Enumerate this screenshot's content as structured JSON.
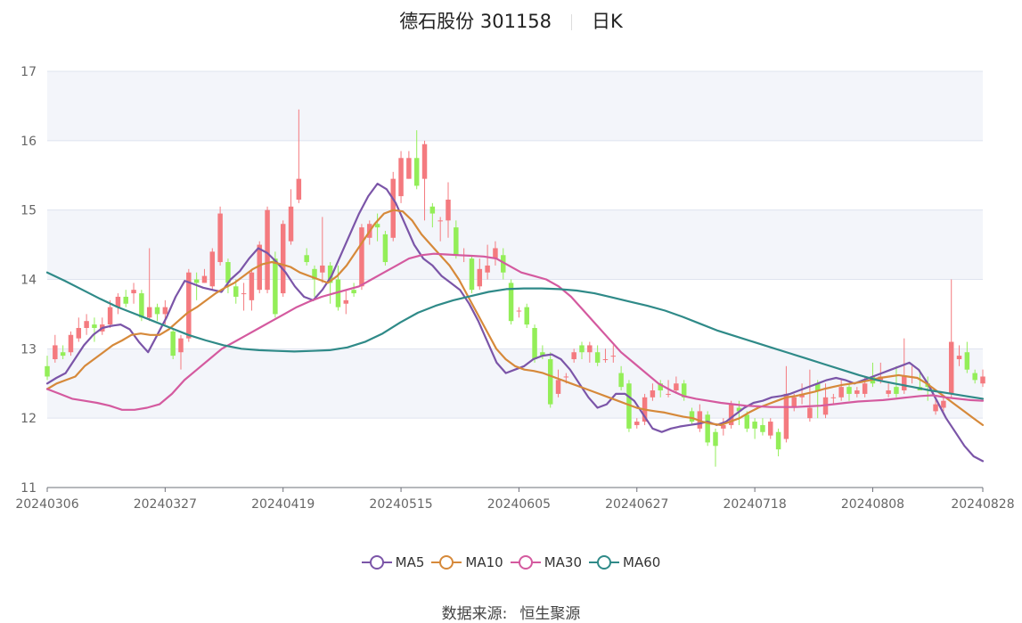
{
  "title": "德石股份 301158",
  "subtitle": "日K",
  "source_label": "数据来源:",
  "source_value": "恒生聚源",
  "colors": {
    "up": "#f47a7f",
    "down": "#93ee58",
    "band": "#f3f5fa",
    "grid": "#dfe4ef",
    "axis": "#666666"
  },
  "chart_data": {
    "type": "candlestick",
    "ylim": [
      11,
      17
    ],
    "yticks": [
      11,
      12,
      13,
      14,
      15,
      16,
      17
    ],
    "grid": true,
    "legend_position": "bottom",
    "x_tick_labels": [
      {
        "i": 0,
        "label": "20240306"
      },
      {
        "i": 15,
        "label": "20240327"
      },
      {
        "i": 30,
        "label": "20240419"
      },
      {
        "i": 45,
        "label": "20240515"
      },
      {
        "i": 60,
        "label": "20240605"
      },
      {
        "i": 75,
        "label": "20240627"
      },
      {
        "i": 90,
        "label": "20240718"
      },
      {
        "i": 105,
        "label": "20240808"
      },
      {
        "i": 119,
        "label": "20240828"
      }
    ],
    "candles": [
      [
        12.75,
        12.6,
        12.9,
        12.55
      ],
      [
        12.85,
        13.05,
        13.2,
        12.8
      ],
      [
        12.95,
        12.9,
        13.05,
        12.85
      ],
      [
        12.95,
        13.2,
        13.25,
        12.9
      ],
      [
        13.15,
        13.3,
        13.45,
        13.1
      ],
      [
        13.3,
        13.4,
        13.5,
        13.2
      ],
      [
        13.35,
        13.3,
        13.45,
        13.1
      ],
      [
        13.25,
        13.35,
        13.45,
        13.2
      ],
      [
        13.35,
        13.6,
        13.7,
        13.3
      ],
      [
        13.6,
        13.75,
        13.8,
        13.5
      ],
      [
        13.75,
        13.65,
        13.85,
        13.6
      ],
      [
        13.8,
        13.85,
        13.95,
        13.65
      ],
      [
        13.8,
        13.45,
        13.85,
        13.4
      ],
      [
        13.45,
        13.6,
        14.45,
        13.4
      ],
      [
        13.6,
        13.5,
        13.65,
        13.4
      ],
      [
        13.5,
        13.6,
        13.7,
        13.35
      ],
      [
        13.25,
        12.9,
        13.3,
        12.85
      ],
      [
        12.95,
        13.15,
        13.2,
        12.7
      ],
      [
        13.15,
        14.1,
        14.15,
        13.1
      ],
      [
        14.0,
        13.95,
        14.1,
        13.7
      ],
      [
        13.95,
        14.05,
        14.15,
        13.95
      ],
      [
        13.9,
        14.4,
        14.45,
        13.85
      ],
      [
        14.25,
        14.95,
        15.05,
        14.2
      ],
      [
        14.25,
        13.95,
        14.3,
        13.8
      ],
      [
        13.9,
        13.75,
        14.0,
        13.65
      ],
      [
        13.8,
        13.8,
        13.95,
        13.55
      ],
      [
        13.7,
        14.1,
        14.15,
        13.55
      ],
      [
        13.85,
        14.5,
        14.55,
        13.8
      ],
      [
        13.85,
        15.0,
        15.05,
        13.8
      ],
      [
        14.3,
        13.5,
        14.4,
        13.45
      ],
      [
        13.8,
        14.8,
        14.85,
        13.75
      ],
      [
        14.55,
        15.05,
        15.3,
        14.5
      ],
      [
        15.15,
        15.45,
        16.45,
        15.1
      ],
      [
        14.35,
        14.25,
        14.45,
        14.2
      ],
      [
        14.15,
        14.0,
        14.2,
        13.75
      ],
      [
        14.1,
        14.2,
        14.9,
        13.95
      ],
      [
        14.2,
        13.95,
        14.25,
        13.65
      ],
      [
        14.0,
        13.6,
        14.2,
        13.55
      ],
      [
        13.65,
        13.7,
        13.85,
        13.5
      ],
      [
        13.85,
        13.8,
        13.95,
        13.75
      ],
      [
        13.9,
        14.75,
        14.8,
        13.85
      ],
      [
        14.6,
        14.8,
        14.85,
        14.5
      ],
      [
        14.8,
        14.75,
        14.95,
        14.55
      ],
      [
        14.65,
        14.25,
        14.7,
        14.2
      ],
      [
        14.6,
        15.45,
        15.55,
        14.55
      ],
      [
        15.2,
        15.75,
        15.85,
        15.1
      ],
      [
        15.45,
        15.75,
        15.85,
        15.45
      ],
      [
        15.75,
        15.35,
        16.15,
        15.3
      ],
      [
        15.45,
        15.95,
        16.0,
        14.85
      ],
      [
        15.05,
        14.95,
        15.1,
        14.75
      ],
      [
        14.85,
        14.85,
        14.9,
        14.55
      ],
      [
        14.85,
        15.15,
        15.4,
        14.6
      ],
      [
        14.75,
        14.35,
        14.85,
        14.3
      ],
      [
        14.35,
        14.35,
        14.45,
        14.25
      ],
      [
        14.3,
        13.85,
        14.35,
        13.8
      ],
      [
        13.9,
        14.15,
        14.3,
        13.85
      ],
      [
        14.1,
        14.2,
        14.5,
        14.0
      ],
      [
        14.3,
        14.45,
        14.55,
        14.2
      ],
      [
        14.35,
        14.1,
        14.45,
        14.0
      ],
      [
        13.95,
        13.4,
        14.0,
        13.35
      ],
      [
        13.55,
        13.55,
        13.6,
        13.45
      ],
      [
        13.6,
        13.35,
        13.65,
        13.3
      ],
      [
        13.3,
        12.85,
        13.35,
        12.8
      ],
      [
        12.95,
        12.9,
        13.05,
        12.85
      ],
      [
        12.85,
        12.2,
        12.95,
        12.15
      ],
      [
        12.35,
        12.55,
        12.7,
        12.3
      ],
      [
        12.6,
        12.6,
        12.65,
        12.5
      ],
      [
        12.85,
        12.95,
        13.0,
        12.8
      ],
      [
        13.05,
        12.95,
        13.1,
        12.85
      ],
      [
        12.95,
        13.05,
        13.1,
        12.8
      ],
      [
        12.95,
        12.8,
        13.05,
        12.75
      ],
      [
        12.85,
        12.85,
        13.0,
        12.8
      ],
      [
        12.9,
        12.9,
        13.05,
        12.8
      ],
      [
        12.65,
        12.45,
        12.75,
        12.4
      ],
      [
        12.5,
        11.85,
        12.55,
        11.8
      ],
      [
        11.9,
        11.95,
        12.0,
        11.85
      ],
      [
        11.95,
        12.3,
        12.35,
        11.9
      ],
      [
        12.3,
        12.4,
        12.5,
        12.25
      ],
      [
        12.5,
        12.4,
        12.55,
        12.3
      ],
      [
        12.35,
        12.35,
        12.55,
        12.3
      ],
      [
        12.4,
        12.5,
        12.6,
        12.35
      ],
      [
        12.5,
        12.3,
        12.55,
        12.25
      ],
      [
        12.1,
        11.95,
        12.15,
        11.9
      ],
      [
        11.85,
        12.1,
        12.2,
        11.8
      ],
      [
        12.05,
        11.65,
        12.1,
        11.6
      ],
      [
        11.8,
        11.6,
        11.85,
        11.3
      ],
      [
        11.85,
        11.9,
        12.0,
        11.75
      ],
      [
        11.9,
        12.2,
        12.25,
        11.85
      ],
      [
        12.15,
        12.1,
        12.25,
        11.9
      ],
      [
        12.05,
        11.85,
        12.1,
        11.8
      ],
      [
        11.95,
        11.85,
        12.0,
        11.7
      ],
      [
        11.9,
        11.8,
        12.0,
        11.75
      ],
      [
        11.75,
        11.95,
        12.0,
        11.7
      ],
      [
        11.8,
        11.55,
        11.85,
        11.45
      ],
      [
        11.7,
        12.35,
        12.75,
        11.65
      ],
      [
        12.15,
        12.3,
        12.35,
        12.1
      ],
      [
        12.3,
        12.35,
        12.5,
        12.2
      ],
      [
        12.0,
        12.15,
        12.7,
        11.95
      ],
      [
        12.5,
        12.4,
        12.55,
        12.0
      ],
      [
        12.05,
        12.3,
        12.5,
        12.0
      ],
      [
        12.3,
        12.3,
        12.35,
        12.2
      ],
      [
        12.3,
        12.45,
        12.55,
        12.25
      ],
      [
        12.45,
        12.35,
        12.5,
        12.25
      ],
      [
        12.35,
        12.4,
        12.45,
        12.3
      ],
      [
        12.35,
        12.5,
        12.6,
        12.3
      ],
      [
        12.6,
        12.5,
        12.8,
        12.45
      ],
      [
        12.55,
        12.6,
        12.8,
        12.5
      ],
      [
        12.35,
        12.4,
        12.5,
        12.3
      ],
      [
        12.45,
        12.35,
        12.75,
        12.3
      ],
      [
        12.4,
        12.6,
        13.15,
        12.35
      ],
      [
        12.6,
        12.6,
        12.75,
        12.5
      ],
      [
        12.45,
        12.4,
        12.7,
        12.4
      ],
      [
        12.5,
        12.45,
        12.6,
        12.25
      ],
      [
        12.1,
        12.2,
        12.3,
        12.05
      ],
      [
        12.15,
        12.25,
        12.3,
        12.1
      ],
      [
        12.35,
        13.1,
        14.0,
        12.3
      ],
      [
        12.85,
        12.9,
        13.05,
        12.75
      ],
      [
        12.95,
        12.7,
        13.1,
        12.65
      ],
      [
        12.65,
        12.55,
        12.7,
        12.5
      ],
      [
        12.5,
        12.6,
        12.7,
        12.45
      ]
    ],
    "series": [
      {
        "name": "MA5",
        "color": "#7b55a8",
        "values": [
          12.5,
          12.58,
          12.65,
          12.85,
          13.05,
          13.2,
          13.3,
          13.33,
          13.35,
          13.28,
          13.1,
          12.95,
          13.2,
          13.45,
          13.75,
          13.98,
          13.93,
          13.88,
          13.85,
          13.82,
          14.0,
          14.12,
          14.3,
          14.45,
          14.38,
          14.25,
          14.1,
          13.9,
          13.75,
          13.7,
          13.85,
          14.05,
          14.35,
          14.65,
          14.95,
          15.2,
          15.38,
          15.3,
          15.1,
          14.8,
          14.5,
          14.3,
          14.2,
          14.05,
          13.95,
          13.85,
          13.65,
          13.4,
          13.1,
          12.8,
          12.65,
          12.7,
          12.75,
          12.85,
          12.9,
          12.92,
          12.85,
          12.7,
          12.5,
          12.3,
          12.15,
          12.2,
          12.35,
          12.35,
          12.25,
          12.05,
          11.85,
          11.8,
          11.85,
          11.88,
          11.9,
          11.92,
          11.95,
          11.9,
          11.95,
          12.05,
          12.15,
          12.22,
          12.25,
          12.3,
          12.32,
          12.35,
          12.4,
          12.45,
          12.5,
          12.55,
          12.58,
          12.55,
          12.5,
          12.55,
          12.6,
          12.65,
          12.7,
          12.75,
          12.8,
          12.7,
          12.5,
          12.25,
          12.0,
          11.8,
          11.6,
          11.45,
          11.38
        ]
      },
      {
        "name": "MA10",
        "color": "#d6893a",
        "values": [
          12.42,
          12.5,
          12.55,
          12.6,
          12.75,
          12.85,
          12.95,
          13.05,
          13.12,
          13.2,
          13.22,
          13.2,
          13.2,
          13.28,
          13.4,
          13.52,
          13.6,
          13.7,
          13.8,
          13.88,
          13.95,
          14.05,
          14.15,
          14.22,
          14.25,
          14.22,
          14.18,
          14.1,
          14.05,
          14.0,
          13.95,
          14.05,
          14.2,
          14.4,
          14.6,
          14.8,
          14.95,
          15.0,
          14.98,
          14.85,
          14.65,
          14.5,
          14.35,
          14.2,
          14.0,
          13.75,
          13.5,
          13.25,
          13.0,
          12.85,
          12.75,
          12.7,
          12.68,
          12.65,
          12.6,
          12.55,
          12.5,
          12.45,
          12.4,
          12.35,
          12.3,
          12.25,
          12.2,
          12.15,
          12.12,
          12.1,
          12.08,
          12.05,
          12.02,
          12.0,
          11.95,
          11.92,
          11.9,
          11.95,
          12.0,
          12.08,
          12.15,
          12.2,
          12.25,
          12.3,
          12.32,
          12.35,
          12.38,
          12.42,
          12.45,
          12.48,
          12.5,
          12.52,
          12.55,
          12.58,
          12.6,
          12.62,
          12.6,
          12.58,
          12.5,
          12.4,
          12.3,
          12.2,
          12.1,
          12.0,
          11.9
        ]
      },
      {
        "name": "MA30",
        "color": "#d45a9f",
        "values": [
          12.42,
          12.35,
          12.28,
          12.25,
          12.22,
          12.18,
          12.12,
          12.12,
          12.15,
          12.2,
          12.35,
          12.55,
          12.7,
          12.85,
          13.0,
          13.1,
          13.2,
          13.3,
          13.4,
          13.5,
          13.6,
          13.68,
          13.75,
          13.8,
          13.85,
          13.9,
          14.0,
          14.1,
          14.2,
          14.3,
          14.35,
          14.37,
          14.36,
          14.35,
          14.34,
          14.33,
          14.3,
          14.2,
          14.1,
          14.05,
          14.0,
          13.9,
          13.75,
          13.55,
          13.35,
          13.15,
          12.95,
          12.8,
          12.65,
          12.5,
          12.4,
          12.32,
          12.28,
          12.25,
          12.22,
          12.2,
          12.18,
          12.17,
          12.16,
          12.16,
          12.16,
          12.17,
          12.18,
          12.2,
          12.22,
          12.24,
          12.25,
          12.26,
          12.28,
          12.3,
          12.32,
          12.33,
          12.3,
          12.28,
          12.26,
          12.25
        ]
      },
      {
        "name": "MA60",
        "color": "#2f8a88",
        "values": [
          14.1,
          13.98,
          13.85,
          13.72,
          13.6,
          13.5,
          13.4,
          13.3,
          13.2,
          13.12,
          13.05,
          13.0,
          12.98,
          12.97,
          12.96,
          12.97,
          12.98,
          13.02,
          13.1,
          13.22,
          13.38,
          13.52,
          13.62,
          13.7,
          13.76,
          13.82,
          13.86,
          13.87,
          13.87,
          13.86,
          13.84,
          13.8,
          13.74,
          13.68,
          13.62,
          13.55,
          13.46,
          13.36,
          13.26,
          13.18,
          13.1,
          13.02,
          12.94,
          12.86,
          12.78,
          12.7,
          12.62,
          12.55,
          12.5,
          12.45,
          12.4,
          12.36,
          12.32,
          12.28
        ]
      }
    ]
  }
}
